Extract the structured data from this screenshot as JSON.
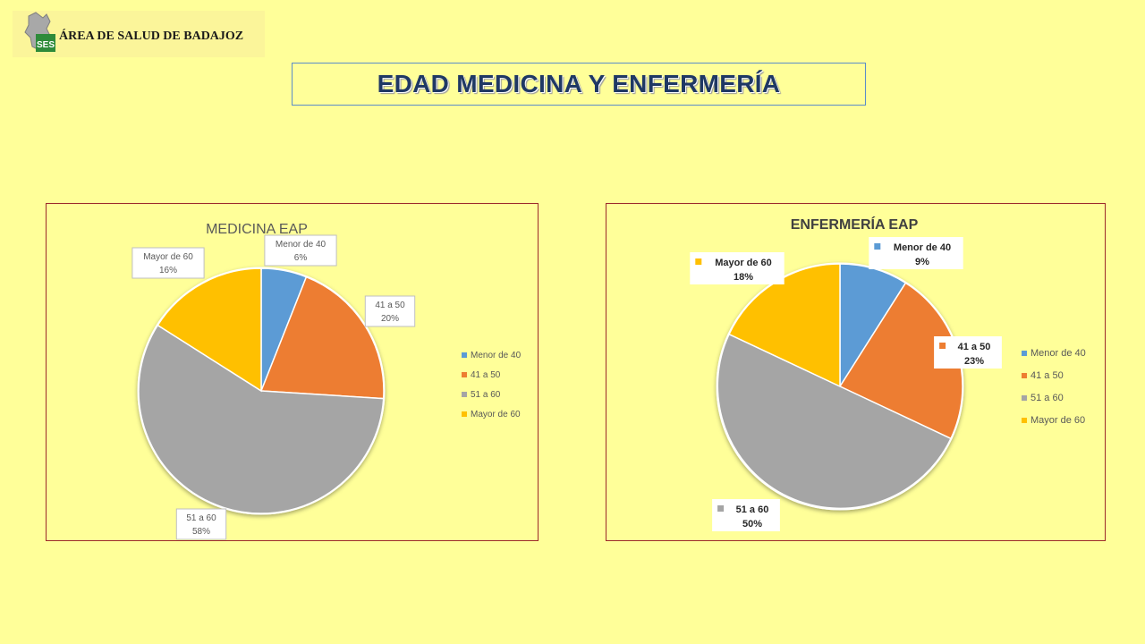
{
  "header": {
    "logo_text": "ÁREA DE SALUD DE BADAJOZ",
    "logo_badge": "SES",
    "logo_icon": "region-map-icon",
    "slide_title": "EDAD MEDICINA Y ENFERMERÍA"
  },
  "colors": {
    "background": "#ffff99",
    "title_text": "#1f3864",
    "title_border": "#5b8dc9",
    "chart_border": "#9c2b2b",
    "slice_menor40": "#5b9bd5",
    "slice_41a50": "#ed7d31",
    "slice_51a60": "#a5a5a5",
    "slice_mayor60": "#ffc000"
  },
  "chart_data": [
    {
      "type": "pie",
      "title": "MEDICINA EAP",
      "categories": [
        "Menor de 40",
        "41 a 50",
        "51 a 60",
        "Mayor de 60"
      ],
      "values": [
        6,
        20,
        58,
        16
      ],
      "labels": [
        "Menor de 40\n6%",
        "41 a 50\n20%",
        "51 a 60\n58%",
        "Mayor de 60\n16%"
      ],
      "legend": [
        "Menor de 40",
        "41 a 50",
        "51 a 60",
        "Mayor de 60"
      ],
      "legend_position": "right",
      "label_style": "boxed"
    },
    {
      "type": "pie",
      "title": "ENFERMERÍA EAP",
      "categories": [
        "Menor de 40",
        "41 a 50",
        "51 a 60",
        "Mayor de 60"
      ],
      "values": [
        9,
        23,
        50,
        18
      ],
      "labels": [
        "Menor de 40\n9%",
        "41 a 50\n23%",
        "51 a 60\n50%",
        "Mayor de 60\n18%"
      ],
      "legend": [
        "Menor de 40",
        "41 a 50",
        "51 a 60",
        "Mayor de 60"
      ],
      "legend_position": "right",
      "label_style": "bold-with-key"
    }
  ]
}
